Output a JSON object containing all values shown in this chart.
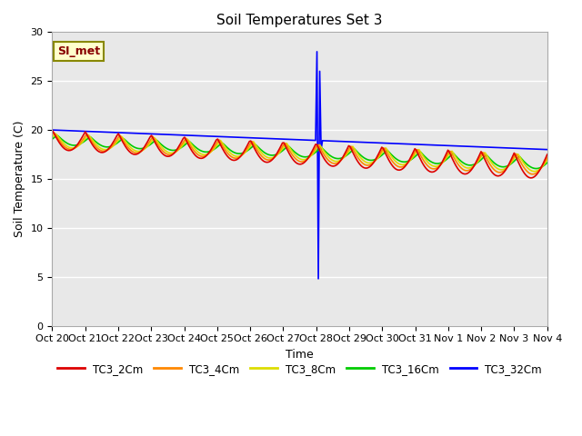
{
  "title": "Soil Temperatures Set 3",
  "xlabel": "Time",
  "ylabel": "Soil Temperature (C)",
  "ylim": [
    0,
    30
  ],
  "yticks": [
    0,
    5,
    10,
    15,
    20,
    25,
    30
  ],
  "background_color": "#e8e8e8",
  "grid_color": "white",
  "series_colors": {
    "TC3_2Cm": "#dd0000",
    "TC3_4Cm": "#ff8800",
    "TC3_8Cm": "#dddd00",
    "TC3_16Cm": "#00cc00",
    "TC3_32Cm": "#0000ff"
  },
  "series_labels": [
    "TC3_2Cm",
    "TC3_4Cm",
    "TC3_8Cm",
    "TC3_16Cm",
    "TC3_32Cm"
  ],
  "annotation_text": "SI_met",
  "annotation_color": "#880000",
  "annotation_bg": "#ffffcc",
  "annotation_border": "#888800",
  "n_days": 15,
  "n_points": 360,
  "spike_day": 8.0,
  "spike_up": 28.0,
  "spike_down": 4.8,
  "spike_up2": 26.0
}
